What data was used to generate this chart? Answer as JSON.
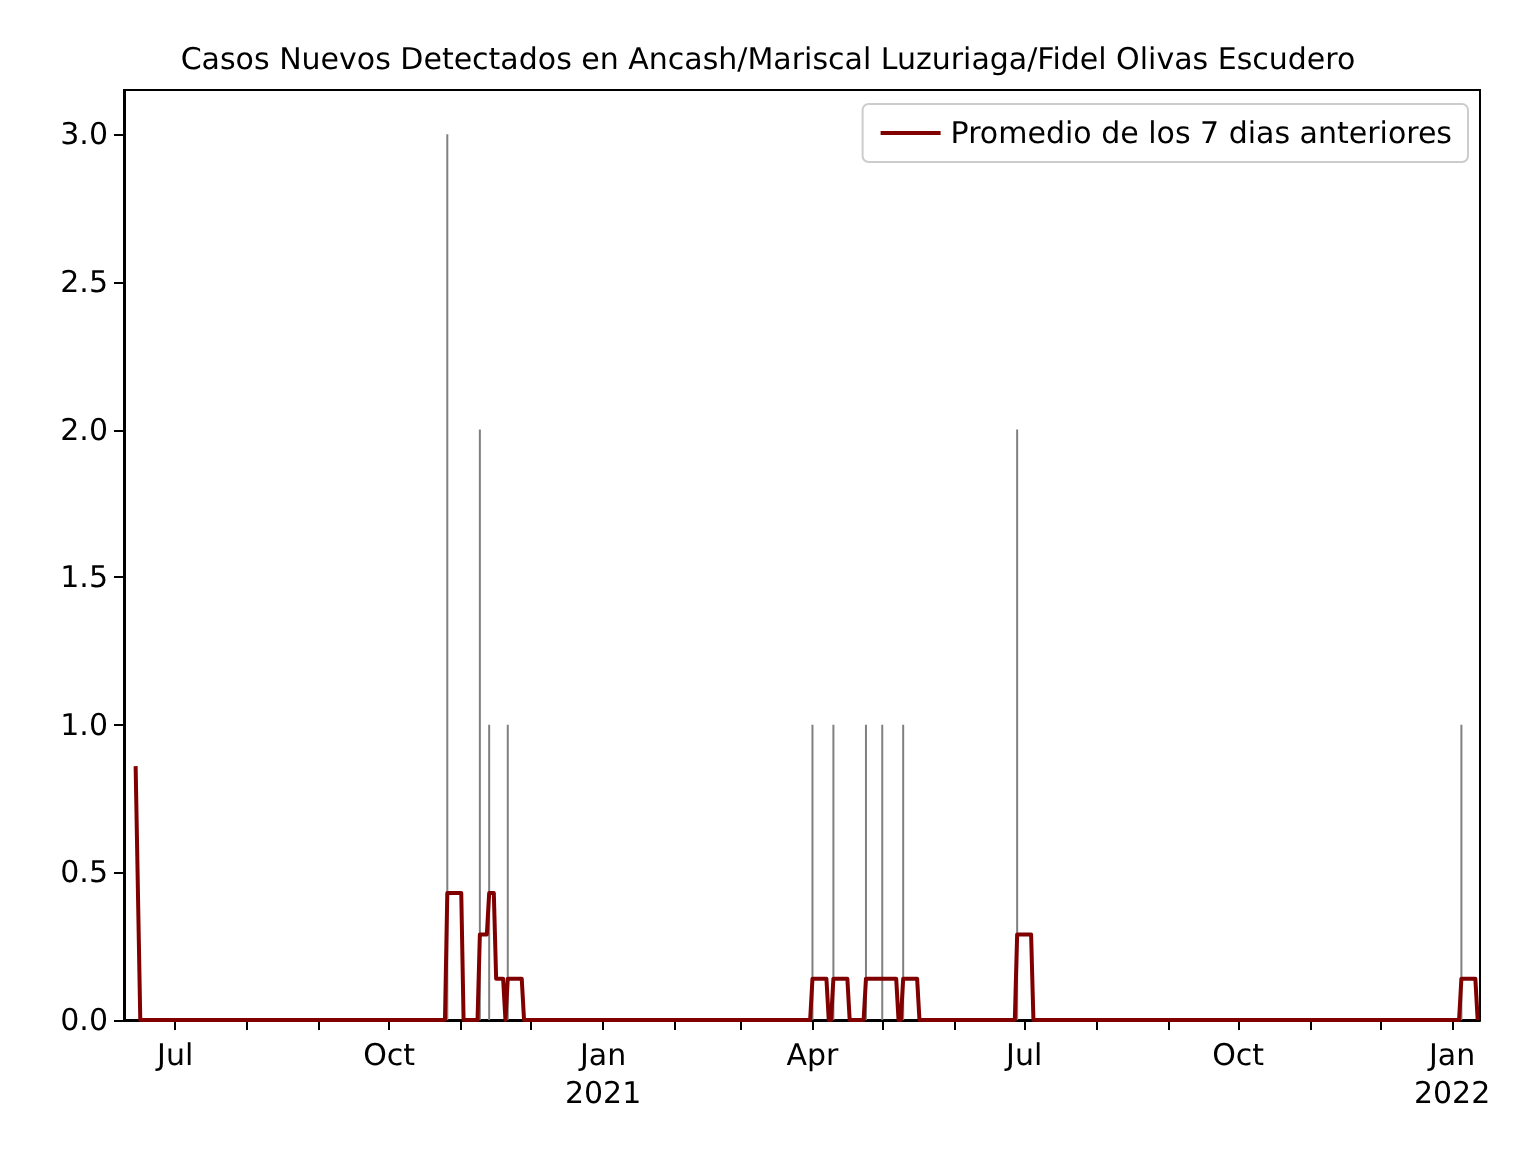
{
  "chart_data": {
    "type": "line",
    "title": "Casos Nuevos Detectados en Ancash/Mariscal Luzuriaga/Fidel Olivas Escudero",
    "series": [
      {
        "type": "bar",
        "color": "#808080",
        "x": [
          "2020-10-26",
          "2020-11-09",
          "2020-11-13",
          "2020-11-21",
          "2021-04-01",
          "2021-04-10",
          "2021-04-24",
          "2021-05-01",
          "2021-05-10",
          "2021-06-28",
          "2022-01-05"
        ],
        "values": [
          3,
          2,
          1,
          1,
          1,
          1,
          1,
          1,
          1,
          2,
          1
        ]
      },
      {
        "name": "Promedio de los 7 dias anteriores",
        "color": "#800000",
        "x": [
          "2020-06-14",
          "2020-06-16",
          "2020-10-25",
          "2020-10-26",
          "2020-11-01",
          "2020-11-02",
          "2020-11-08",
          "2020-11-09",
          "2020-11-12",
          "2020-11-13",
          "2020-11-15",
          "2020-11-16",
          "2020-11-19",
          "2020-11-20",
          "2020-11-21",
          "2020-11-27",
          "2020-11-28",
          "2021-03-31",
          "2021-04-01",
          "2021-04-07",
          "2021-04-08",
          "2021-04-09",
          "2021-04-10",
          "2021-04-16",
          "2021-04-17",
          "2021-04-23",
          "2021-04-24",
          "2021-05-07",
          "2021-05-08",
          "2021-05-09",
          "2021-05-10",
          "2021-05-16",
          "2021-05-17",
          "2021-06-27",
          "2021-06-28",
          "2021-07-04",
          "2021-07-05",
          "2022-01-04",
          "2022-01-05",
          "2022-01-11",
          "2022-01-12"
        ],
        "values": [
          0.86,
          0,
          0,
          0.43,
          0.43,
          0,
          0,
          0.29,
          0.29,
          0.43,
          0.43,
          0.14,
          0.14,
          0,
          0.14,
          0.14,
          0,
          0,
          0.14,
          0.14,
          0,
          0,
          0.14,
          0.14,
          0,
          0,
          0.14,
          0.14,
          0,
          0,
          0.14,
          0.14,
          0,
          0,
          0.29,
          0.29,
          0,
          0,
          0.14,
          0.14,
          0
        ]
      }
    ],
    "xlim": [
      "2020-06-09",
      "2022-01-13"
    ],
    "xticks": [
      {
        "value": "2020-07-01",
        "label": "Jul"
      },
      {
        "value": "2020-08-01",
        "label": null
      },
      {
        "value": "2020-09-01",
        "label": null
      },
      {
        "value": "2020-10-01",
        "label": "Oct"
      },
      {
        "value": "2020-11-01",
        "label": null
      },
      {
        "value": "2020-12-01",
        "label": null
      },
      {
        "value": "2021-01-01",
        "label": "Jan\n2021"
      },
      {
        "value": "2021-02-01",
        "label": null
      },
      {
        "value": "2021-03-01",
        "label": null
      },
      {
        "value": "2021-04-01",
        "label": "Apr"
      },
      {
        "value": "2021-05-01",
        "label": null
      },
      {
        "value": "2021-06-01",
        "label": null
      },
      {
        "value": "2021-07-01",
        "label": "Jul"
      },
      {
        "value": "2021-08-01",
        "label": null
      },
      {
        "value": "2021-09-01",
        "label": null
      },
      {
        "value": "2021-10-01",
        "label": "Oct"
      },
      {
        "value": "2021-11-01",
        "label": null
      },
      {
        "value": "2021-12-01",
        "label": null
      },
      {
        "value": "2022-01-01",
        "label": "Jan\n2022"
      }
    ],
    "ylim": [
      0,
      3.15
    ],
    "yticks": [
      {
        "value": 0,
        "label": "0.0"
      },
      {
        "value": 0.5,
        "label": "0.5"
      },
      {
        "value": 1,
        "label": "1.0"
      },
      {
        "value": 1.5,
        "label": "1.5"
      },
      {
        "value": 2,
        "label": "2.0"
      },
      {
        "value": 2.5,
        "label": "2.5"
      },
      {
        "value": 3,
        "label": "3.0"
      }
    ],
    "grid": false,
    "legend": "top right"
  }
}
